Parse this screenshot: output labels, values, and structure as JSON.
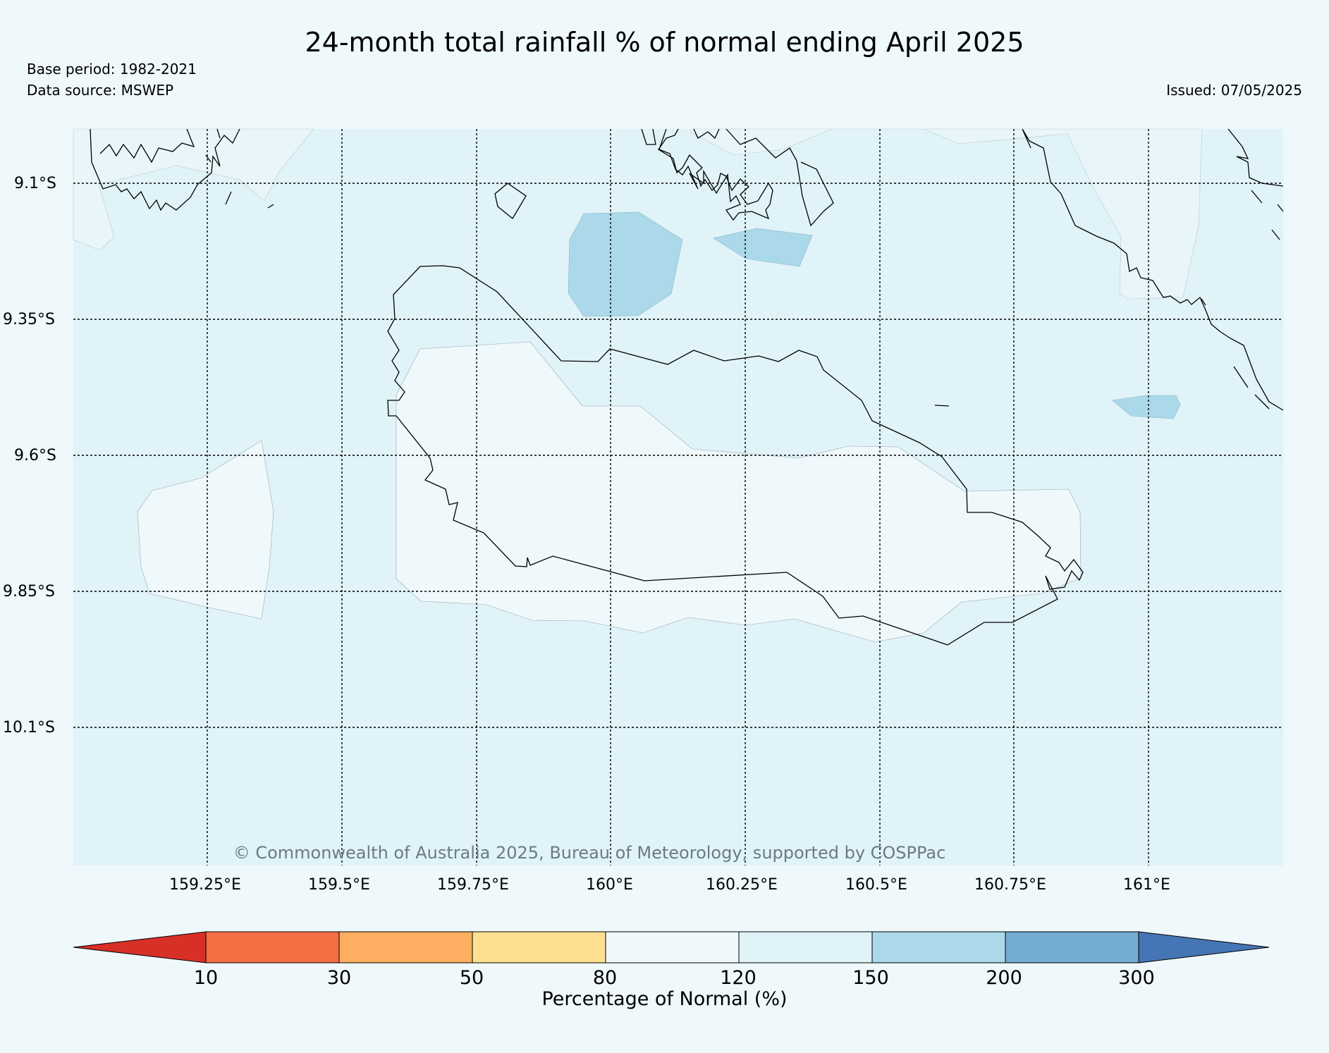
{
  "header": {
    "title": "24-month total rainfall % of normal ending April 2025",
    "base_period": "Base period: 1982-2021",
    "data_source": "Data source: MSWEP",
    "issued": "Issued: 07/05/2025"
  },
  "map": {
    "lat_labels": [
      "9.1°S",
      "9.35°S",
      "9.6°S",
      "9.85°S",
      "10.1°S"
    ],
    "lon_labels": [
      "159.25°E",
      "159.5°E",
      "159.75°E",
      "160°E",
      "160.25°E",
      "160.5°E",
      "160.75°E",
      "161°E"
    ],
    "copyright": "© Commonwealth of Australia 2025, Bureau of Meteorology, supported by COSPPac",
    "background_class_color": "#e0f3f8"
  },
  "legend": {
    "title": "Percentage of Normal (%)",
    "ticks": [
      "10",
      "30",
      "50",
      "80",
      "120",
      "150",
      "200",
      "300"
    ],
    "colors": [
      "#d73027",
      "#f46d43",
      "#fdae61",
      "#fee090",
      "#eff8fb",
      "#e0f3f8",
      "#abd9e9",
      "#74add1",
      "#4575b4"
    ]
  }
}
